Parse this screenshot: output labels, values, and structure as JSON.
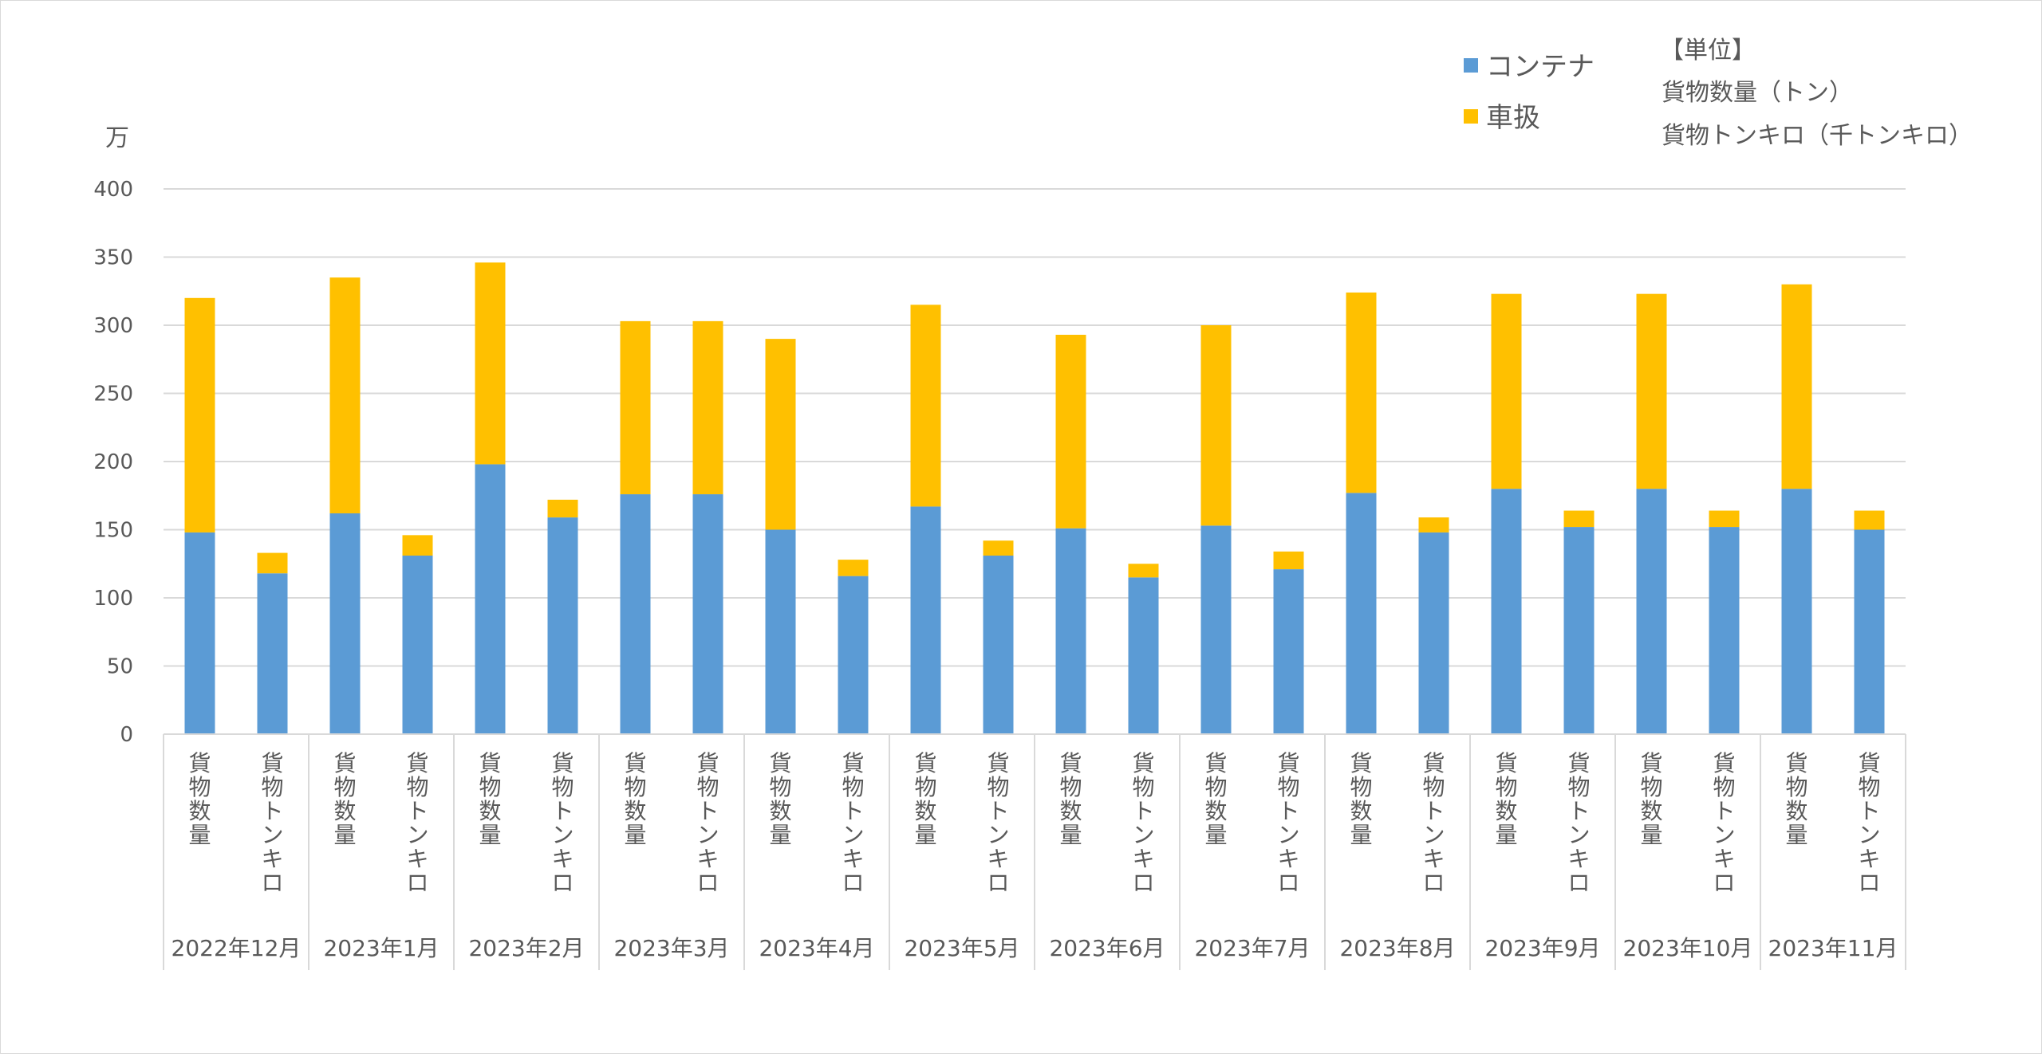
{
  "chart_data": {
    "type": "bar",
    "stacked": true,
    "unit_label": "万",
    "units_note": {
      "title": "【単位】",
      "lines": [
        "貨物数量（トン）",
        "貨物トンキロ（千トンキロ）"
      ]
    },
    "ylim": [
      0,
      400
    ],
    "yticks": [
      "0",
      "50",
      "100",
      "150",
      "200",
      "250",
      "300",
      "350",
      "400"
    ],
    "grid": true,
    "legend_position": "top-right",
    "groups": [
      "2022年12月",
      "2023年1月",
      "2023年2月",
      "2023年3月",
      "2023年4月",
      "2023年5月",
      "2023年6月",
      "2023年7月",
      "2023年8月",
      "2023年9月",
      "2023年10月",
      "2023年11月"
    ],
    "subcategories": [
      "貨物数量",
      "貨物トンキロ"
    ],
    "series": [
      {
        "name": "コンテナ",
        "color": "#5b9bd5",
        "values": [
          [
            148,
            118
          ],
          [
            162,
            131
          ],
          [
            198,
            159
          ],
          [
            176,
            176
          ],
          [
            150,
            116
          ],
          [
            167,
            131
          ],
          [
            151,
            115
          ],
          [
            153,
            121
          ],
          [
            177,
            148
          ],
          [
            180,
            152
          ],
          [
            180,
            152
          ],
          [
            180,
            150
          ]
        ]
      },
      {
        "name": "車扱",
        "color": "#ffc000",
        "values": [
          [
            172,
            15
          ],
          [
            173,
            15
          ],
          [
            148,
            13
          ],
          [
            127,
            127
          ],
          [
            140,
            12
          ],
          [
            148,
            11
          ],
          [
            142,
            10
          ],
          [
            147,
            13
          ],
          [
            147,
            11
          ],
          [
            143,
            12
          ],
          [
            143,
            12
          ],
          [
            150,
            14
          ]
        ]
      }
    ]
  }
}
